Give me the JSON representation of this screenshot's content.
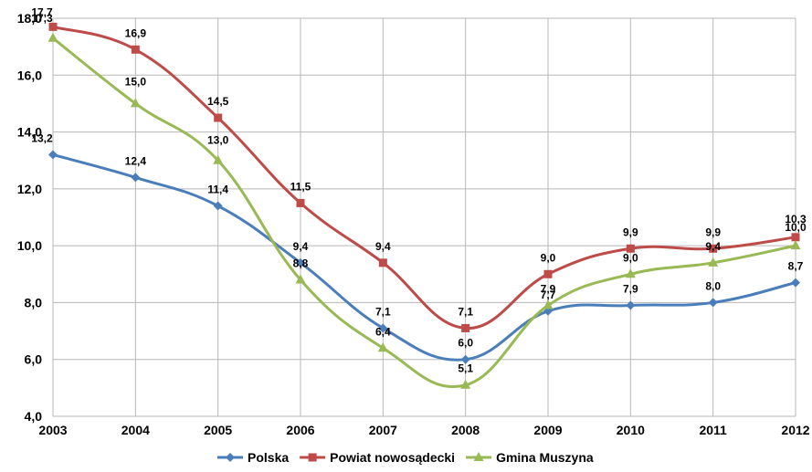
{
  "chart_data": {
    "type": "line",
    "title": "",
    "xlabel": "",
    "ylabel": "",
    "categories": [
      "2003",
      "2004",
      "2005",
      "2006",
      "2007",
      "2008",
      "2009",
      "2010",
      "2011",
      "2012"
    ],
    "ylim": [
      4.0,
      18.0
    ],
    "y_ticks": [
      "4,0",
      "6,0",
      "8,0",
      "10,0",
      "12,0",
      "14,0",
      "16,0",
      "18,0"
    ],
    "grid": true,
    "smooth": true,
    "legend_position": "bottom",
    "series": [
      {
        "name": "Polska",
        "color": "#4a7ebb",
        "marker": "diamond",
        "values": [
          13.2,
          12.4,
          11.4,
          9.4,
          7.1,
          6.0,
          7.7,
          7.9,
          8.0,
          8.7
        ],
        "labels": [
          "13,2",
          "12,4",
          "11,4",
          "9,4",
          "7,1",
          "6,0",
          "7,7",
          "7,9",
          "8,0",
          "8,7"
        ]
      },
      {
        "name": "Powiat nowosądecki",
        "color": "#be4b48",
        "marker": "square",
        "values": [
          17.7,
          16.9,
          14.5,
          11.5,
          9.4,
          7.1,
          9.0,
          9.9,
          9.9,
          10.3
        ],
        "labels": [
          "17,7",
          "16,9",
          "14,5",
          "11,5",
          "9,4",
          "7,1",
          "9,0",
          "9,9",
          "9,9",
          "10,3"
        ]
      },
      {
        "name": "Gmina Muszyna",
        "color": "#98b954",
        "marker": "triangle",
        "values": [
          17.3,
          15.0,
          13.0,
          8.8,
          6.4,
          5.1,
          7.9,
          9.0,
          9.4,
          10.0
        ],
        "labels": [
          "17,3",
          "15,0",
          "13,0",
          "8,8",
          "6,4",
          "5,1",
          "7,9",
          "9,0",
          "9,4",
          "10,0"
        ]
      }
    ]
  }
}
